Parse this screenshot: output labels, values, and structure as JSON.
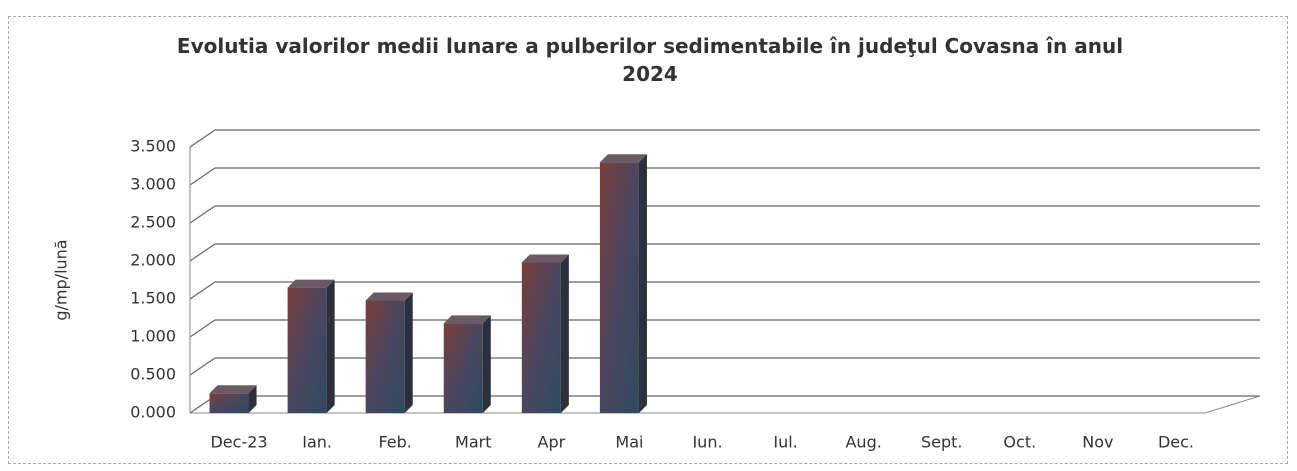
{
  "chart_data": {
    "type": "bar",
    "title": "Evolutia valorilor medii lunare a pulberilor sedimentabile în judeţul Covasna  în anul 2024",
    "y_label": "g/mp/lună",
    "categories": [
      "Dec-23",
      "Ian.",
      "Feb.",
      "Mart",
      "Apr",
      "Mai",
      "Iun.",
      "Iul.",
      "Aug.",
      "Sept.",
      "Oct.",
      "Nov",
      "Dec."
    ],
    "values": [
      0.26,
      1.65,
      1.48,
      1.18,
      1.98,
      3.3,
      null,
      null,
      null,
      null,
      null,
      null,
      null
    ],
    "color": "#5a4552",
    "ylim": [
      0,
      3.5
    ],
    "yticks": [
      {
        "value": 0,
        "label": "0.000"
      },
      {
        "value": 0.5,
        "label": "0.500"
      },
      {
        "value": 1,
        "label": "1.000"
      },
      {
        "value": 1.5,
        "label": "1.500"
      },
      {
        "value": 2,
        "label": "2.000"
      },
      {
        "value": 2.5,
        "label": "2.500"
      },
      {
        "value": 3,
        "label": "3.000"
      },
      {
        "value": 3.5,
        "label": "3.500"
      }
    ],
    "grid": true
  }
}
